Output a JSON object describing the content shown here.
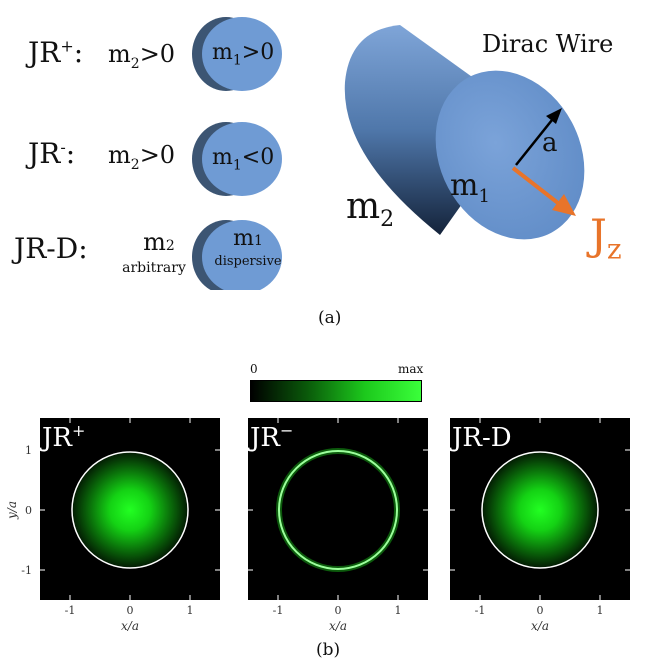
{
  "top": {
    "rows": [
      {
        "label_base": "JR",
        "label_sup": "+",
        "m2": "m",
        "m2_sub": "2",
        "m2_rel": ">0",
        "m1": "m",
        "m1_sub": "1",
        "m1_rel": ">0"
      },
      {
        "label_base": "JR",
        "label_sup": "-",
        "m2": "m",
        "m2_sub": "2",
        "m2_rel": ">0",
        "m1": "m",
        "m1_sub": "1",
        "m1_rel": "<0"
      },
      {
        "label_base": "JR-D",
        "label_sup": "",
        "m2": "m",
        "m2_sub": "2",
        "m2_note": "arbitrary",
        "m1": "m",
        "m1_sub": "1",
        "m1_note": "dispersive"
      }
    ],
    "wire": {
      "title": "Dirac Wire",
      "radius_label": "a",
      "inner": "m",
      "inner_sub": "1",
      "outer": "m",
      "outer_sub": "2",
      "current": "J",
      "current_sub": "z"
    },
    "caption": "(a)"
  },
  "bottom": {
    "colorbar": {
      "min_label": "0",
      "max_label": "max"
    },
    "panels": [
      {
        "title": "JR",
        "title_sup": "+",
        "profile": "gaussian"
      },
      {
        "title": "JR",
        "title_sup": "−",
        "profile": "ring"
      },
      {
        "title": "JR-D",
        "title_sup": "",
        "profile": "gaussian"
      }
    ],
    "axes": {
      "xlabel": "x/a",
      "ylabel": "y/a",
      "xticks": [
        "-1",
        "0",
        "1"
      ],
      "yticks": [
        "1",
        "0",
        "-1"
      ]
    },
    "caption": "(b)"
  },
  "colors": {
    "disk": "#6f9bd4",
    "disk_dark": "#3c5573",
    "arrow": "#e8742a",
    "glow": "#00ff00"
  }
}
